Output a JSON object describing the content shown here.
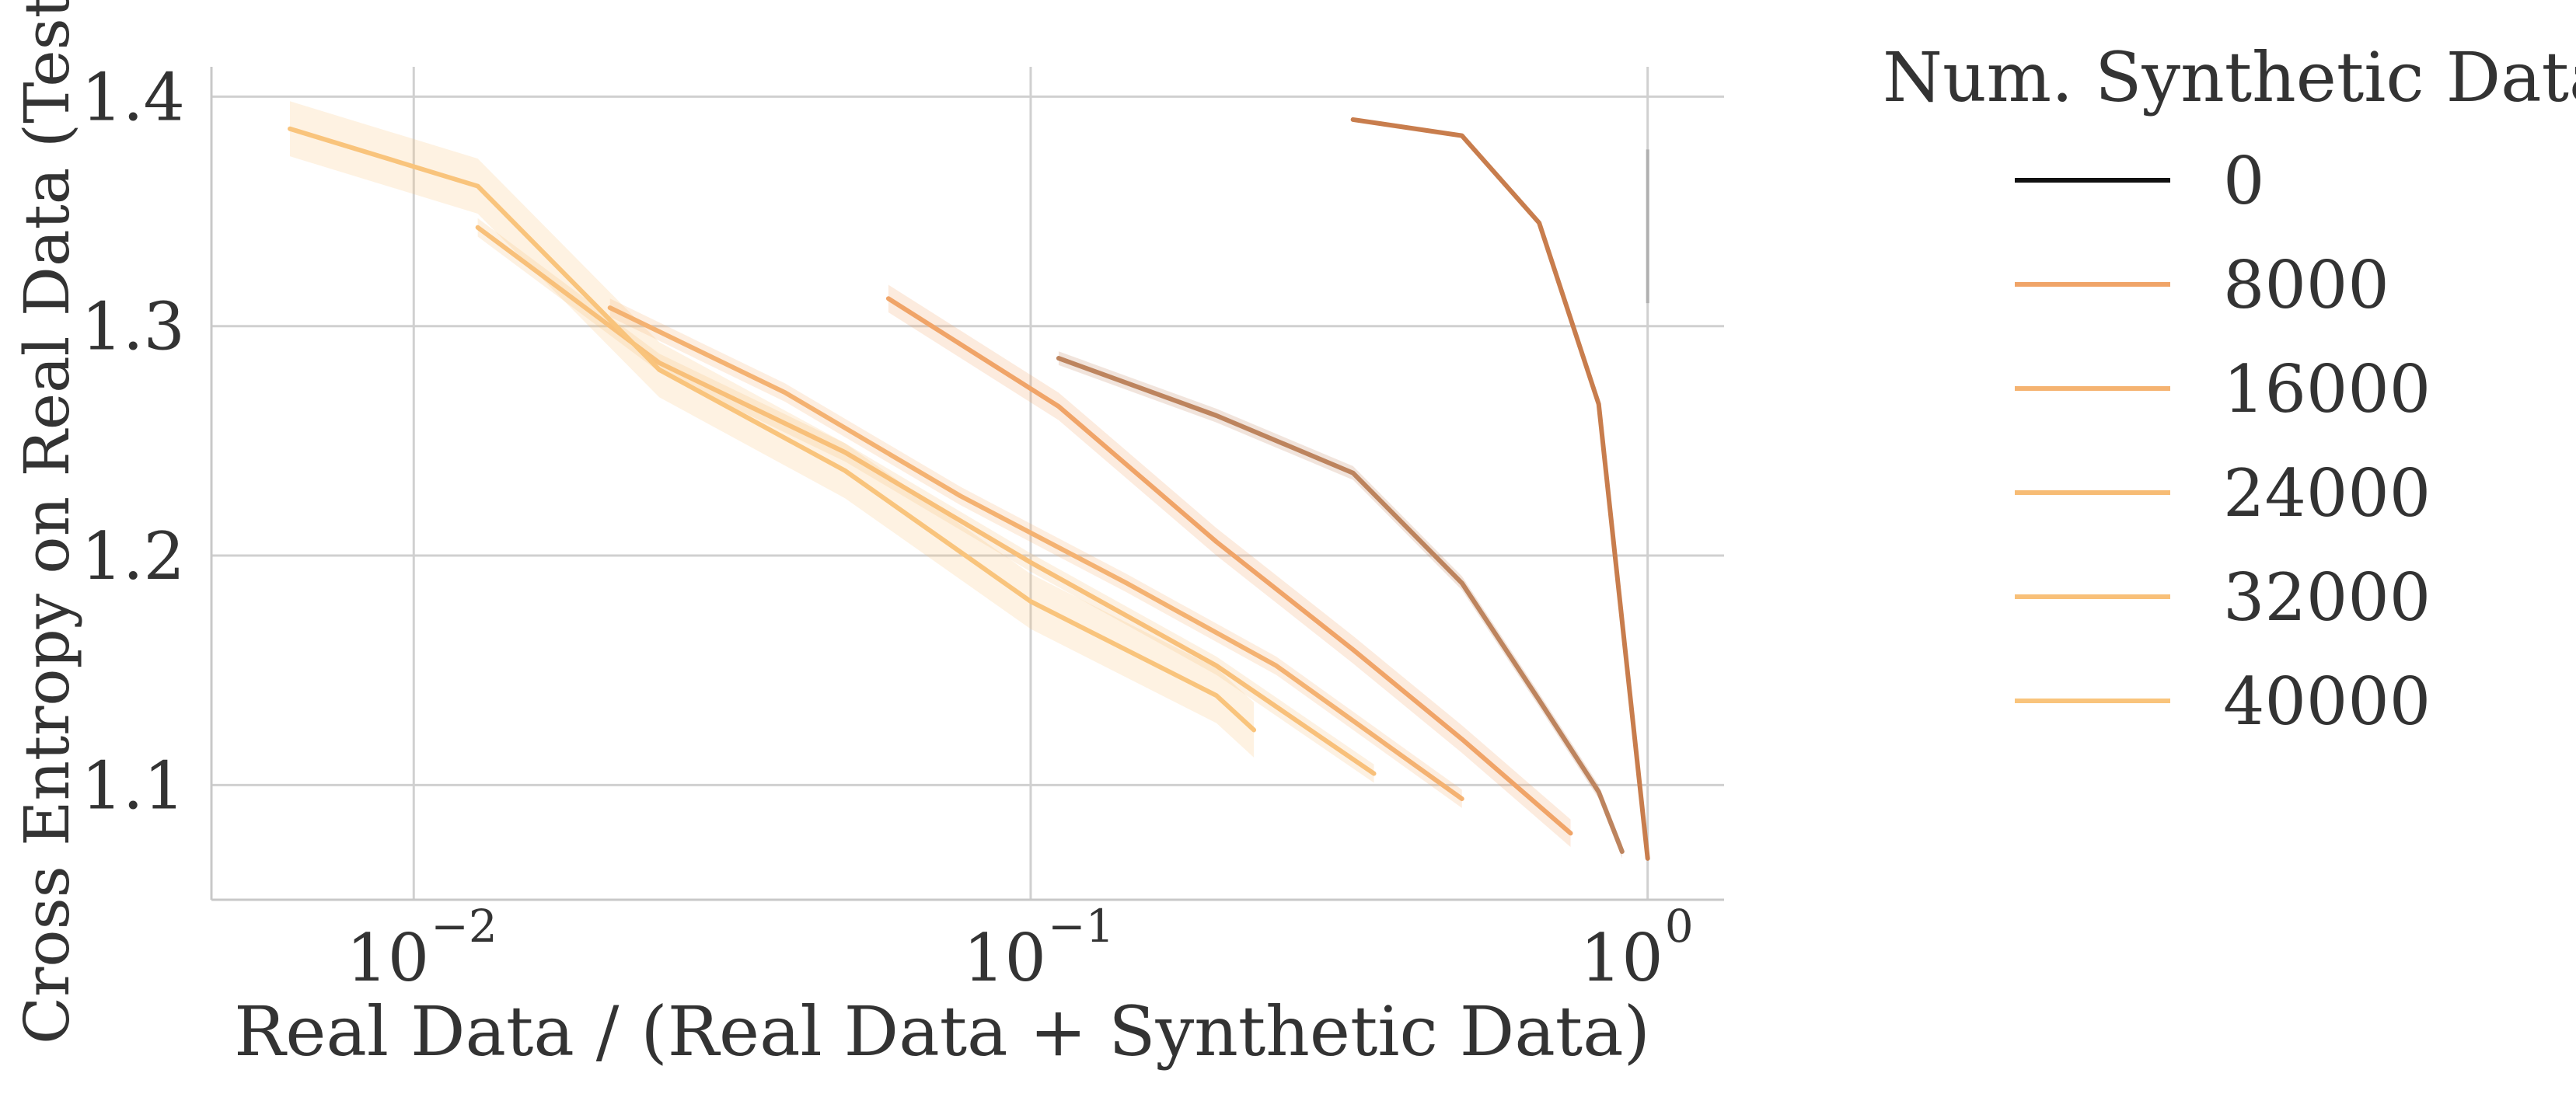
{
  "chart_data": {
    "type": "line",
    "xscale": "log",
    "xlabel": "Real Data / (Real Data + Synthetic Data)",
    "ylabel": "Cross Entropy on Real Data (Test)",
    "xlim": [
      0.0047,
      1.33
    ],
    "ylim": [
      1.05,
      1.413
    ],
    "grid": true,
    "xticks": [
      {
        "value": 0.01,
        "base": "10",
        "exp": "−2"
      },
      {
        "value": 0.1,
        "base": "10",
        "exp": "−1"
      },
      {
        "value": 1,
        "base": "10",
        "exp": "0"
      }
    ],
    "yticks": [
      {
        "value": 1.1,
        "label": "1.1"
      },
      {
        "value": 1.2,
        "label": "1.2"
      },
      {
        "value": 1.3,
        "label": "1.3"
      },
      {
        "value": 1.4,
        "label": "1.4"
      }
    ],
    "legend": {
      "title": "Num. Synthetic Data",
      "placement": "outside-right",
      "entries": [
        {
          "label": "0",
          "color": "#111111"
        },
        {
          "label": "8000",
          "color": "#f0a468"
        },
        {
          "label": "16000",
          "color": "#f5b371"
        },
        {
          "label": "24000",
          "color": "#f7bc75"
        },
        {
          "label": "32000",
          "color": "#f8c079"
        },
        {
          "label": "40000",
          "color": "#f9c47c"
        }
      ]
    },
    "series": [
      {
        "color": "#c87d4d",
        "band": 0,
        "points": [
          [
            0.333,
            1.39
          ],
          [
            0.5,
            1.383
          ],
          [
            0.667,
            1.345
          ],
          [
            0.833,
            1.266
          ],
          [
            1.0,
            1.068
          ]
        ]
      },
      {
        "color": "#bd845e",
        "band": 0.003,
        "points": [
          [
            0.111,
            1.286
          ],
          [
            0.2,
            1.261
          ],
          [
            0.333,
            1.236
          ],
          [
            0.5,
            1.188
          ],
          [
            0.667,
            1.137
          ],
          [
            0.833,
            1.097
          ],
          [
            0.909,
            1.071
          ]
        ]
      },
      {
        "color": "#f0a468",
        "band": 0.006,
        "points": [
          [
            0.0588,
            1.312
          ],
          [
            0.111,
            1.265
          ],
          [
            0.2,
            1.206
          ],
          [
            0.333,
            1.159
          ],
          [
            0.5,
            1.12
          ],
          [
            0.75,
            1.079
          ]
        ]
      },
      {
        "color": "#f4b272",
        "band": 0.004,
        "points": [
          [
            0.0208,
            1.308
          ],
          [
            0.04,
            1.271
          ],
          [
            0.0769,
            1.226
          ],
          [
            0.143,
            1.188
          ],
          [
            0.25,
            1.152
          ],
          [
            0.5,
            1.094
          ]
        ]
      },
      {
        "color": "#f8c07a",
        "band": 0.004,
        "points": [
          [
            0.0127,
            1.343
          ],
          [
            0.025,
            1.284
          ],
          [
            0.05,
            1.245
          ],
          [
            0.1,
            1.197
          ],
          [
            0.2,
            1.152
          ],
          [
            0.36,
            1.105
          ]
        ]
      },
      {
        "color": "#f9c47c",
        "band": 0.012,
        "points": [
          [
            0.0063,
            1.386
          ],
          [
            0.0127,
            1.361
          ],
          [
            0.025,
            1.281
          ],
          [
            0.05,
            1.237
          ],
          [
            0.1,
            1.18
          ],
          [
            0.2,
            1.139
          ],
          [
            0.23,
            1.124
          ]
        ]
      }
    ],
    "extra_segments": [
      {
        "color": "#b0b0b0",
        "x": 1.0,
        "y": [
          1.31,
          1.377
        ]
      }
    ]
  }
}
